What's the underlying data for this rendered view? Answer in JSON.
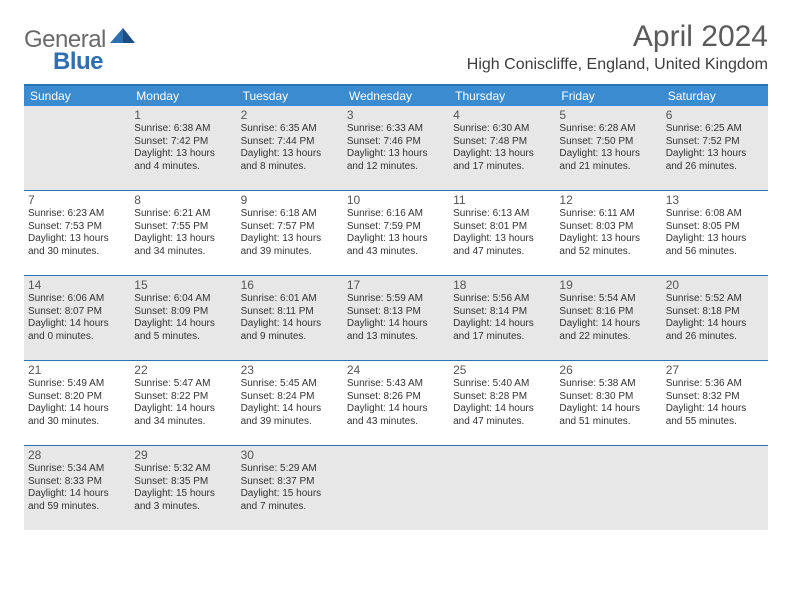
{
  "logo": {
    "word1": "General",
    "word2": "Blue"
  },
  "title": "April 2024",
  "location": "High Coniscliffe, England, United Kingdom",
  "colors": {
    "header_bg": "#3b8bd1",
    "border": "#2c72b4",
    "shaded_cell": "#e7e7e7",
    "text": "#333333",
    "logo_gray": "#6a6a6a",
    "logo_blue": "#2f6fb0"
  },
  "day_names": [
    "Sunday",
    "Monday",
    "Tuesday",
    "Wednesday",
    "Thursday",
    "Friday",
    "Saturday"
  ],
  "weeks": [
    [
      {
        "num": "",
        "sunrise": "",
        "sunset": "",
        "daylight1": "",
        "daylight2": "",
        "shaded": true
      },
      {
        "num": "1",
        "sunrise": "Sunrise: 6:38 AM",
        "sunset": "Sunset: 7:42 PM",
        "daylight1": "Daylight: 13 hours",
        "daylight2": "and 4 minutes.",
        "shaded": true
      },
      {
        "num": "2",
        "sunrise": "Sunrise: 6:35 AM",
        "sunset": "Sunset: 7:44 PM",
        "daylight1": "Daylight: 13 hours",
        "daylight2": "and 8 minutes.",
        "shaded": true
      },
      {
        "num": "3",
        "sunrise": "Sunrise: 6:33 AM",
        "sunset": "Sunset: 7:46 PM",
        "daylight1": "Daylight: 13 hours",
        "daylight2": "and 12 minutes.",
        "shaded": true
      },
      {
        "num": "4",
        "sunrise": "Sunrise: 6:30 AM",
        "sunset": "Sunset: 7:48 PM",
        "daylight1": "Daylight: 13 hours",
        "daylight2": "and 17 minutes.",
        "shaded": true
      },
      {
        "num": "5",
        "sunrise": "Sunrise: 6:28 AM",
        "sunset": "Sunset: 7:50 PM",
        "daylight1": "Daylight: 13 hours",
        "daylight2": "and 21 minutes.",
        "shaded": true
      },
      {
        "num": "6",
        "sunrise": "Sunrise: 6:25 AM",
        "sunset": "Sunset: 7:52 PM",
        "daylight1": "Daylight: 13 hours",
        "daylight2": "and 26 minutes.",
        "shaded": true
      }
    ],
    [
      {
        "num": "7",
        "sunrise": "Sunrise: 6:23 AM",
        "sunset": "Sunset: 7:53 PM",
        "daylight1": "Daylight: 13 hours",
        "daylight2": "and 30 minutes.",
        "shaded": false
      },
      {
        "num": "8",
        "sunrise": "Sunrise: 6:21 AM",
        "sunset": "Sunset: 7:55 PM",
        "daylight1": "Daylight: 13 hours",
        "daylight2": "and 34 minutes.",
        "shaded": false
      },
      {
        "num": "9",
        "sunrise": "Sunrise: 6:18 AM",
        "sunset": "Sunset: 7:57 PM",
        "daylight1": "Daylight: 13 hours",
        "daylight2": "and 39 minutes.",
        "shaded": false
      },
      {
        "num": "10",
        "sunrise": "Sunrise: 6:16 AM",
        "sunset": "Sunset: 7:59 PM",
        "daylight1": "Daylight: 13 hours",
        "daylight2": "and 43 minutes.",
        "shaded": false
      },
      {
        "num": "11",
        "sunrise": "Sunrise: 6:13 AM",
        "sunset": "Sunset: 8:01 PM",
        "daylight1": "Daylight: 13 hours",
        "daylight2": "and 47 minutes.",
        "shaded": false
      },
      {
        "num": "12",
        "sunrise": "Sunrise: 6:11 AM",
        "sunset": "Sunset: 8:03 PM",
        "daylight1": "Daylight: 13 hours",
        "daylight2": "and 52 minutes.",
        "shaded": false
      },
      {
        "num": "13",
        "sunrise": "Sunrise: 6:08 AM",
        "sunset": "Sunset: 8:05 PM",
        "daylight1": "Daylight: 13 hours",
        "daylight2": "and 56 minutes.",
        "shaded": false
      }
    ],
    [
      {
        "num": "14",
        "sunrise": "Sunrise: 6:06 AM",
        "sunset": "Sunset: 8:07 PM",
        "daylight1": "Daylight: 14 hours",
        "daylight2": "and 0 minutes.",
        "shaded": true
      },
      {
        "num": "15",
        "sunrise": "Sunrise: 6:04 AM",
        "sunset": "Sunset: 8:09 PM",
        "daylight1": "Daylight: 14 hours",
        "daylight2": "and 5 minutes.",
        "shaded": true
      },
      {
        "num": "16",
        "sunrise": "Sunrise: 6:01 AM",
        "sunset": "Sunset: 8:11 PM",
        "daylight1": "Daylight: 14 hours",
        "daylight2": "and 9 minutes.",
        "shaded": true
      },
      {
        "num": "17",
        "sunrise": "Sunrise: 5:59 AM",
        "sunset": "Sunset: 8:13 PM",
        "daylight1": "Daylight: 14 hours",
        "daylight2": "and 13 minutes.",
        "shaded": true
      },
      {
        "num": "18",
        "sunrise": "Sunrise: 5:56 AM",
        "sunset": "Sunset: 8:14 PM",
        "daylight1": "Daylight: 14 hours",
        "daylight2": "and 17 minutes.",
        "shaded": true
      },
      {
        "num": "19",
        "sunrise": "Sunrise: 5:54 AM",
        "sunset": "Sunset: 8:16 PM",
        "daylight1": "Daylight: 14 hours",
        "daylight2": "and 22 minutes.",
        "shaded": true
      },
      {
        "num": "20",
        "sunrise": "Sunrise: 5:52 AM",
        "sunset": "Sunset: 8:18 PM",
        "daylight1": "Daylight: 14 hours",
        "daylight2": "and 26 minutes.",
        "shaded": true
      }
    ],
    [
      {
        "num": "21",
        "sunrise": "Sunrise: 5:49 AM",
        "sunset": "Sunset: 8:20 PM",
        "daylight1": "Daylight: 14 hours",
        "daylight2": "and 30 minutes.",
        "shaded": false
      },
      {
        "num": "22",
        "sunrise": "Sunrise: 5:47 AM",
        "sunset": "Sunset: 8:22 PM",
        "daylight1": "Daylight: 14 hours",
        "daylight2": "and 34 minutes.",
        "shaded": false
      },
      {
        "num": "23",
        "sunrise": "Sunrise: 5:45 AM",
        "sunset": "Sunset: 8:24 PM",
        "daylight1": "Daylight: 14 hours",
        "daylight2": "and 39 minutes.",
        "shaded": false
      },
      {
        "num": "24",
        "sunrise": "Sunrise: 5:43 AM",
        "sunset": "Sunset: 8:26 PM",
        "daylight1": "Daylight: 14 hours",
        "daylight2": "and 43 minutes.",
        "shaded": false
      },
      {
        "num": "25",
        "sunrise": "Sunrise: 5:40 AM",
        "sunset": "Sunset: 8:28 PM",
        "daylight1": "Daylight: 14 hours",
        "daylight2": "and 47 minutes.",
        "shaded": false
      },
      {
        "num": "26",
        "sunrise": "Sunrise: 5:38 AM",
        "sunset": "Sunset: 8:30 PM",
        "daylight1": "Daylight: 14 hours",
        "daylight2": "and 51 minutes.",
        "shaded": false
      },
      {
        "num": "27",
        "sunrise": "Sunrise: 5:36 AM",
        "sunset": "Sunset: 8:32 PM",
        "daylight1": "Daylight: 14 hours",
        "daylight2": "and 55 minutes.",
        "shaded": false
      }
    ],
    [
      {
        "num": "28",
        "sunrise": "Sunrise: 5:34 AM",
        "sunset": "Sunset: 8:33 PM",
        "daylight1": "Daylight: 14 hours",
        "daylight2": "and 59 minutes.",
        "shaded": true
      },
      {
        "num": "29",
        "sunrise": "Sunrise: 5:32 AM",
        "sunset": "Sunset: 8:35 PM",
        "daylight1": "Daylight: 15 hours",
        "daylight2": "and 3 minutes.",
        "shaded": true
      },
      {
        "num": "30",
        "sunrise": "Sunrise: 5:29 AM",
        "sunset": "Sunset: 8:37 PM",
        "daylight1": "Daylight: 15 hours",
        "daylight2": "and 7 minutes.",
        "shaded": true
      },
      {
        "num": "",
        "sunrise": "",
        "sunset": "",
        "daylight1": "",
        "daylight2": "",
        "shaded": true
      },
      {
        "num": "",
        "sunrise": "",
        "sunset": "",
        "daylight1": "",
        "daylight2": "",
        "shaded": true
      },
      {
        "num": "",
        "sunrise": "",
        "sunset": "",
        "daylight1": "",
        "daylight2": "",
        "shaded": true
      },
      {
        "num": "",
        "sunrise": "",
        "sunset": "",
        "daylight1": "",
        "daylight2": "",
        "shaded": true
      }
    ]
  ]
}
